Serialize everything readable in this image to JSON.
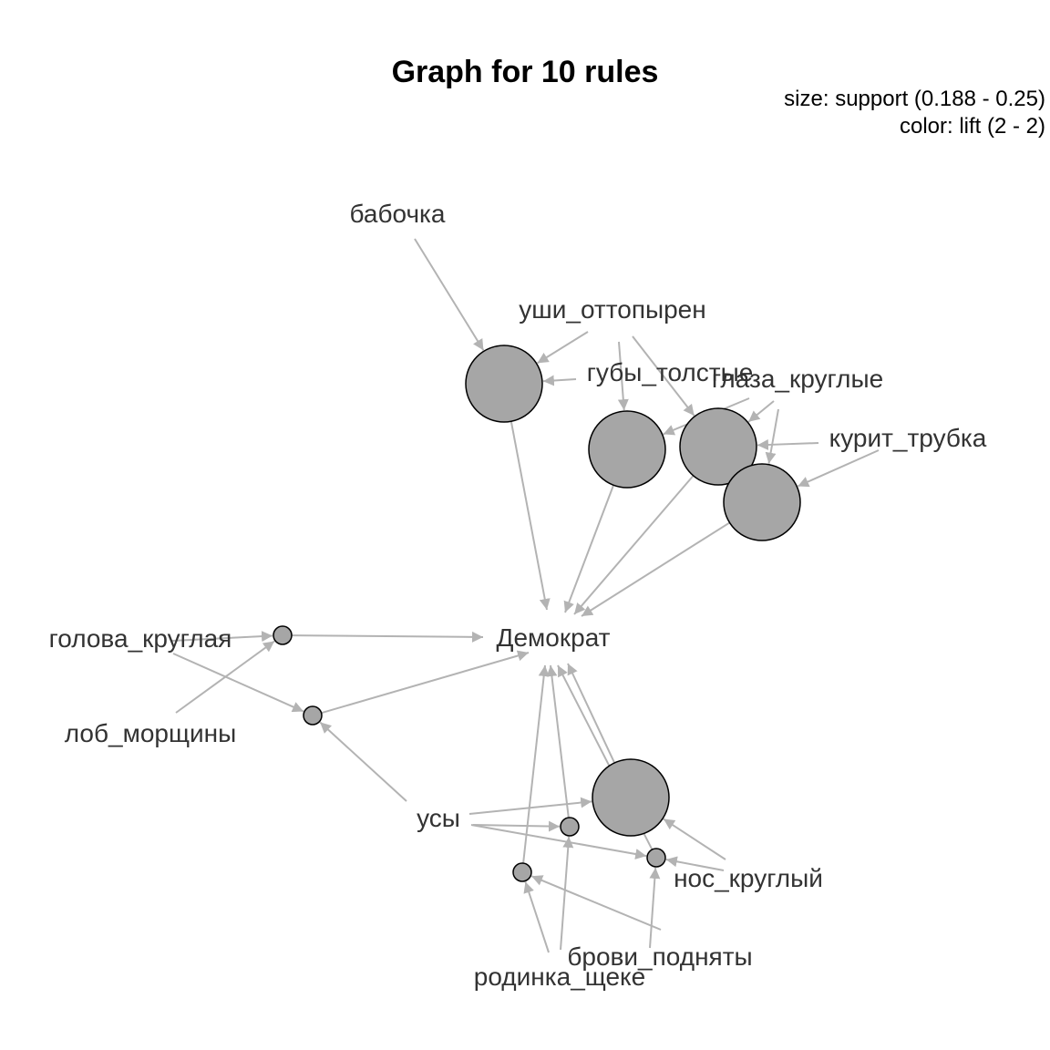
{
  "title": "Graph for 10 rules",
  "legend": {
    "size": "size: support (0.188 - 0.25)",
    "color": "color: lift (2 - 2)"
  },
  "colors": {
    "edge": "#b3b3b3",
    "node_fill": "#a6a6a6",
    "node_stroke": "#000000",
    "label": "#333333"
  },
  "items": [
    {
      "id": "babochka",
      "label": "бабочка"
    },
    {
      "id": "ushi",
      "label": "уши_оттопырен"
    },
    {
      "id": "guby",
      "label": "губы_толстые"
    },
    {
      "id": "glaza",
      "label": "глаза_круглые"
    },
    {
      "id": "trubka",
      "label": "курит_трубка"
    },
    {
      "id": "demokrat",
      "label": "Демократ"
    },
    {
      "id": "golova",
      "label": "голова_круглая"
    },
    {
      "id": "lob",
      "label": "лоб_морщины"
    },
    {
      "id": "usy",
      "label": "усы"
    },
    {
      "id": "nos",
      "label": "нос_круглый"
    },
    {
      "id": "brovi",
      "label": "брови_подняты"
    },
    {
      "id": "rodinka",
      "label": "родинка_щеке"
    }
  ],
  "rules": [
    {
      "id": "r1",
      "support": 0.25,
      "lift": 2,
      "lhs": [
        "babochka",
        "ushi",
        "guby"
      ],
      "rhs": "demokrat"
    },
    {
      "id": "r2",
      "support": 0.25,
      "lift": 2,
      "lhs": [
        "ushi",
        "glaza"
      ],
      "rhs": "demokrat"
    },
    {
      "id": "r3",
      "support": 0.25,
      "lift": 2,
      "lhs": [
        "ushi",
        "glaza",
        "trubka"
      ],
      "rhs": "demokrat"
    },
    {
      "id": "r4",
      "support": 0.25,
      "lift": 2,
      "lhs": [
        "glaza",
        "trubka"
      ],
      "rhs": "demokrat"
    },
    {
      "id": "r5",
      "support": 0.188,
      "lift": 2,
      "lhs": [
        "golova",
        "lob"
      ],
      "rhs": "demokrat"
    },
    {
      "id": "r6",
      "support": 0.188,
      "lift": 2,
      "lhs": [
        "golova",
        "usy"
      ],
      "rhs": "demokrat"
    },
    {
      "id": "r7",
      "support": 0.25,
      "lift": 2,
      "lhs": [
        "usy",
        "nos"
      ],
      "rhs": "demokrat"
    },
    {
      "id": "r8",
      "support": 0.188,
      "lift": 2,
      "lhs": [
        "usy",
        "nos",
        "rodinka"
      ],
      "rhs": "demokrat"
    },
    {
      "id": "r9",
      "support": 0.188,
      "lift": 2,
      "lhs": [
        "usy",
        "brovi"
      ],
      "rhs": "demokrat"
    },
    {
      "id": "r10",
      "support": 0.188,
      "lift": 2,
      "lhs": [
        "brovi",
        "rodinka"
      ],
      "rhs": "demokrat"
    }
  ]
}
